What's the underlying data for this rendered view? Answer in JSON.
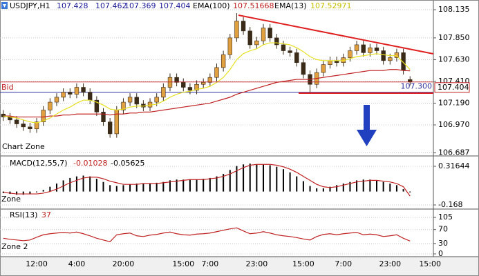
{
  "chart_data": [
    {
      "type": "candlestick",
      "title": "USDJPY,H1",
      "zone_label": "Chart Zone",
      "bid_label": "Bid",
      "categories": [
        null,
        null,
        null,
        null,
        null,
        "12:00",
        null,
        null,
        null,
        null,
        null,
        "4:00",
        null,
        null,
        null,
        null,
        null,
        null,
        "20:00",
        null,
        null,
        null,
        null,
        null,
        null,
        null,
        null,
        "15:00",
        null,
        null,
        null,
        "7:00",
        null,
        null,
        null,
        null,
        null,
        null,
        "23:00",
        null,
        null,
        null,
        null,
        null,
        null,
        "15:00",
        null,
        null,
        null,
        null,
        null,
        "7:00",
        null,
        null,
        null,
        null,
        null,
        null,
        "23:00",
        null,
        null,
        null,
        null,
        null,
        "15:00"
      ],
      "open": [
        107.08,
        107.05,
        107.02,
        106.98,
        106.95,
        106.93,
        107.0,
        107.12,
        107.2,
        107.25,
        107.3,
        107.28,
        107.35,
        107.3,
        107.22,
        107.1,
        107.0,
        106.88,
        107.12,
        107.2,
        107.25,
        107.18,
        107.15,
        107.2,
        107.25,
        107.35,
        107.45,
        107.4,
        107.35,
        107.32,
        107.38,
        107.4,
        107.45,
        107.55,
        107.68,
        107.85,
        108.02,
        107.92,
        107.78,
        107.82,
        107.95,
        107.85,
        107.78,
        107.72,
        107.7,
        107.6,
        107.48,
        107.38,
        107.5,
        107.58,
        107.62,
        107.6,
        107.65,
        107.72,
        107.78,
        107.7,
        107.75,
        107.72,
        107.62,
        107.65,
        107.7,
        107.428,
        null,
        null,
        null
      ],
      "high": [
        107.12,
        107.09,
        107.06,
        107.02,
        106.99,
        107.04,
        107.16,
        107.24,
        107.29,
        107.34,
        107.34,
        107.39,
        107.39,
        107.34,
        107.26,
        107.14,
        107.04,
        107.16,
        107.24,
        107.29,
        107.29,
        107.22,
        107.24,
        107.29,
        107.39,
        107.49,
        107.49,
        107.44,
        107.39,
        107.42,
        107.44,
        107.49,
        107.59,
        107.72,
        107.89,
        108.1,
        108.06,
        107.96,
        107.86,
        107.99,
        107.99,
        107.89,
        107.82,
        107.76,
        107.74,
        107.64,
        107.52,
        107.54,
        107.62,
        107.66,
        107.66,
        107.69,
        107.76,
        107.82,
        107.82,
        107.79,
        107.79,
        107.76,
        107.69,
        107.74,
        107.74,
        107.462,
        null,
        null,
        null
      ],
      "low": [
        107.01,
        106.98,
        106.94,
        106.91,
        106.89,
        106.89,
        106.96,
        107.08,
        107.16,
        107.21,
        107.24,
        107.24,
        107.26,
        107.18,
        107.06,
        106.96,
        106.84,
        106.84,
        107.08,
        107.16,
        107.14,
        107.11,
        107.11,
        107.16,
        107.21,
        107.31,
        107.36,
        107.31,
        107.28,
        107.28,
        107.34,
        107.36,
        107.41,
        107.51,
        107.64,
        107.81,
        107.88,
        107.74,
        107.74,
        107.78,
        107.81,
        107.74,
        107.68,
        107.66,
        107.56,
        107.44,
        107.3,
        107.34,
        107.46,
        107.54,
        107.56,
        107.56,
        107.61,
        107.68,
        107.66,
        107.66,
        107.68,
        107.58,
        107.58,
        107.61,
        107.48,
        107.369,
        null,
        null,
        null
      ],
      "close": [
        107.05,
        107.02,
        106.98,
        106.95,
        106.93,
        107.0,
        107.12,
        107.2,
        107.25,
        107.3,
        107.28,
        107.35,
        107.3,
        107.22,
        107.1,
        107.0,
        106.88,
        107.12,
        107.2,
        107.25,
        107.18,
        107.15,
        107.2,
        107.25,
        107.35,
        107.45,
        107.4,
        107.35,
        107.32,
        107.38,
        107.4,
        107.45,
        107.55,
        107.68,
        107.85,
        108.02,
        107.92,
        107.78,
        107.82,
        107.95,
        107.85,
        107.78,
        107.72,
        107.7,
        107.6,
        107.48,
        107.38,
        107.5,
        107.58,
        107.62,
        107.6,
        107.65,
        107.72,
        107.78,
        107.7,
        107.75,
        107.72,
        107.62,
        107.65,
        107.7,
        107.52,
        107.404,
        null,
        null,
        null
      ],
      "up_color": "#e0a040",
      "down_color": "#3a2a18",
      "series": [
        {
          "name": "EMA(100)",
          "color": "#c02020",
          "values": [
            107.06,
            107.06,
            107.05,
            107.05,
            107.05,
            107.05,
            107.05,
            107.06,
            107.06,
            107.07,
            107.07,
            107.08,
            107.08,
            107.08,
            107.08,
            107.08,
            107.07,
            107.08,
            107.08,
            107.09,
            107.09,
            107.1,
            107.1,
            107.11,
            107.12,
            107.13,
            107.14,
            107.15,
            107.16,
            107.17,
            107.18,
            107.19,
            107.21,
            107.23,
            107.25,
            107.28,
            107.3,
            107.32,
            107.34,
            107.36,
            107.38,
            107.4,
            107.41,
            107.42,
            107.43,
            107.43,
            107.43,
            107.44,
            107.45,
            107.46,
            107.47,
            107.48,
            107.49,
            107.5,
            107.51,
            107.52,
            107.52,
            107.52,
            107.53,
            107.53,
            107.52,
            107.51668,
            null,
            null,
            null
          ]
        },
        {
          "name": "EMA(13)",
          "color": "#e8e020",
          "values": [
            107.06,
            107.05,
            107.04,
            107.02,
            107.0,
            106.99,
            107.01,
            107.04,
            107.08,
            107.12,
            107.15,
            107.19,
            107.22,
            107.22,
            107.2,
            107.17,
            107.13,
            107.12,
            107.13,
            107.15,
            107.16,
            107.16,
            107.17,
            107.18,
            107.21,
            107.25,
            107.28,
            107.3,
            107.31,
            107.33,
            107.34,
            107.36,
            107.4,
            107.45,
            107.53,
            107.63,
            107.69,
            107.72,
            107.74,
            107.78,
            107.8,
            107.8,
            107.79,
            107.78,
            107.75,
            107.71,
            107.66,
            107.63,
            107.62,
            107.62,
            107.62,
            107.62,
            107.64,
            107.66,
            107.67,
            107.68,
            107.69,
            107.68,
            107.67,
            107.67,
            107.6,
            107.52971,
            null,
            null,
            null
          ]
        }
      ],
      "level": {
        "value": 107.3,
        "label": "107.300"
      },
      "level_color": "#3030a0",
      "ylim": [
        106.663,
        108.233
      ],
      "yticks": [
        108.135,
        {
          "value": 107.85,
          "label": "107.850"
        },
        {
          "value": 107.63,
          "label": "107.630"
        },
        {
          "value": 107.41,
          "label": "107.410"
        },
        {
          "value": 107.19,
          "label": "107.190"
        },
        {
          "value": 106.97,
          "label": "106.970"
        },
        106.687
      ],
      "grid": true
    },
    {
      "type": "macd",
      "title": "MACD(12,55,7)",
      "zone_label": "Zone",
      "series": [
        {
          "color": "#000000",
          "values": [
            -0.02,
            -0.03,
            -0.04,
            -0.04,
            -0.03,
            -0.01,
            0.02,
            0.06,
            0.1,
            0.14,
            0.17,
            0.19,
            0.2,
            0.19,
            0.16,
            0.12,
            0.08,
            0.07,
            0.08,
            0.09,
            0.1,
            0.1,
            0.1,
            0.11,
            0.12,
            0.14,
            0.15,
            0.15,
            0.15,
            0.15,
            0.16,
            0.17,
            0.19,
            0.22,
            0.27,
            0.32,
            0.34,
            0.35,
            0.34,
            0.34,
            0.33,
            0.31,
            0.28,
            0.24,
            0.19,
            0.13,
            0.07,
            0.04,
            0.04,
            0.06,
            0.08,
            0.1,
            0.12,
            0.14,
            0.15,
            0.15,
            0.14,
            0.12,
            0.1,
            0.08,
            0.03,
            -0.01028,
            null,
            null,
            null
          ]
        },
        {
          "color": "#c02020",
          "values": [
            -0.01,
            -0.02,
            -0.03,
            -0.03,
            -0.03,
            -0.03,
            -0.02,
            0.0,
            0.03,
            0.07,
            0.11,
            0.14,
            0.17,
            0.18,
            0.18,
            0.16,
            0.13,
            0.11,
            0.09,
            0.09,
            0.09,
            0.1,
            0.1,
            0.1,
            0.11,
            0.12,
            0.13,
            0.14,
            0.15,
            0.15,
            0.15,
            0.16,
            0.17,
            0.19,
            0.22,
            0.26,
            0.3,
            0.33,
            0.34,
            0.34,
            0.34,
            0.33,
            0.31,
            0.28,
            0.24,
            0.19,
            0.14,
            0.09,
            0.06,
            0.05,
            0.06,
            0.08,
            0.1,
            0.12,
            0.13,
            0.14,
            0.14,
            0.13,
            0.12,
            0.1,
            0.06,
            -0.05625,
            null,
            null,
            null
          ]
        }
      ],
      "ylim": [
        -0.211,
        0.446
      ],
      "yticks": [
        0.31644,
        -0.168
      ],
      "grid": true
    },
    {
      "type": "line",
      "title": "RSI(13)",
      "zone_label": "Zone 2",
      "series": [
        {
          "color": "#c02020",
          "values": [
            45,
            42,
            40,
            38,
            40,
            48,
            55,
            58,
            60,
            62,
            60,
            63,
            58,
            52,
            45,
            40,
            35,
            55,
            58,
            60,
            52,
            50,
            54,
            56,
            60,
            63,
            58,
            55,
            54,
            57,
            58,
            60,
            64,
            68,
            72,
            75,
            66,
            58,
            60,
            64,
            60,
            55,
            52,
            50,
            47,
            43,
            40,
            50,
            56,
            58,
            55,
            58,
            60,
            62,
            55,
            57,
            55,
            50,
            52,
            55,
            45,
            37,
            null,
            null,
            null
          ]
        }
      ],
      "ylim": [
        -8,
        127
      ],
      "yticks": [
        105,
        70,
        30,
        0
      ],
      "grid": true
    }
  ]
}
